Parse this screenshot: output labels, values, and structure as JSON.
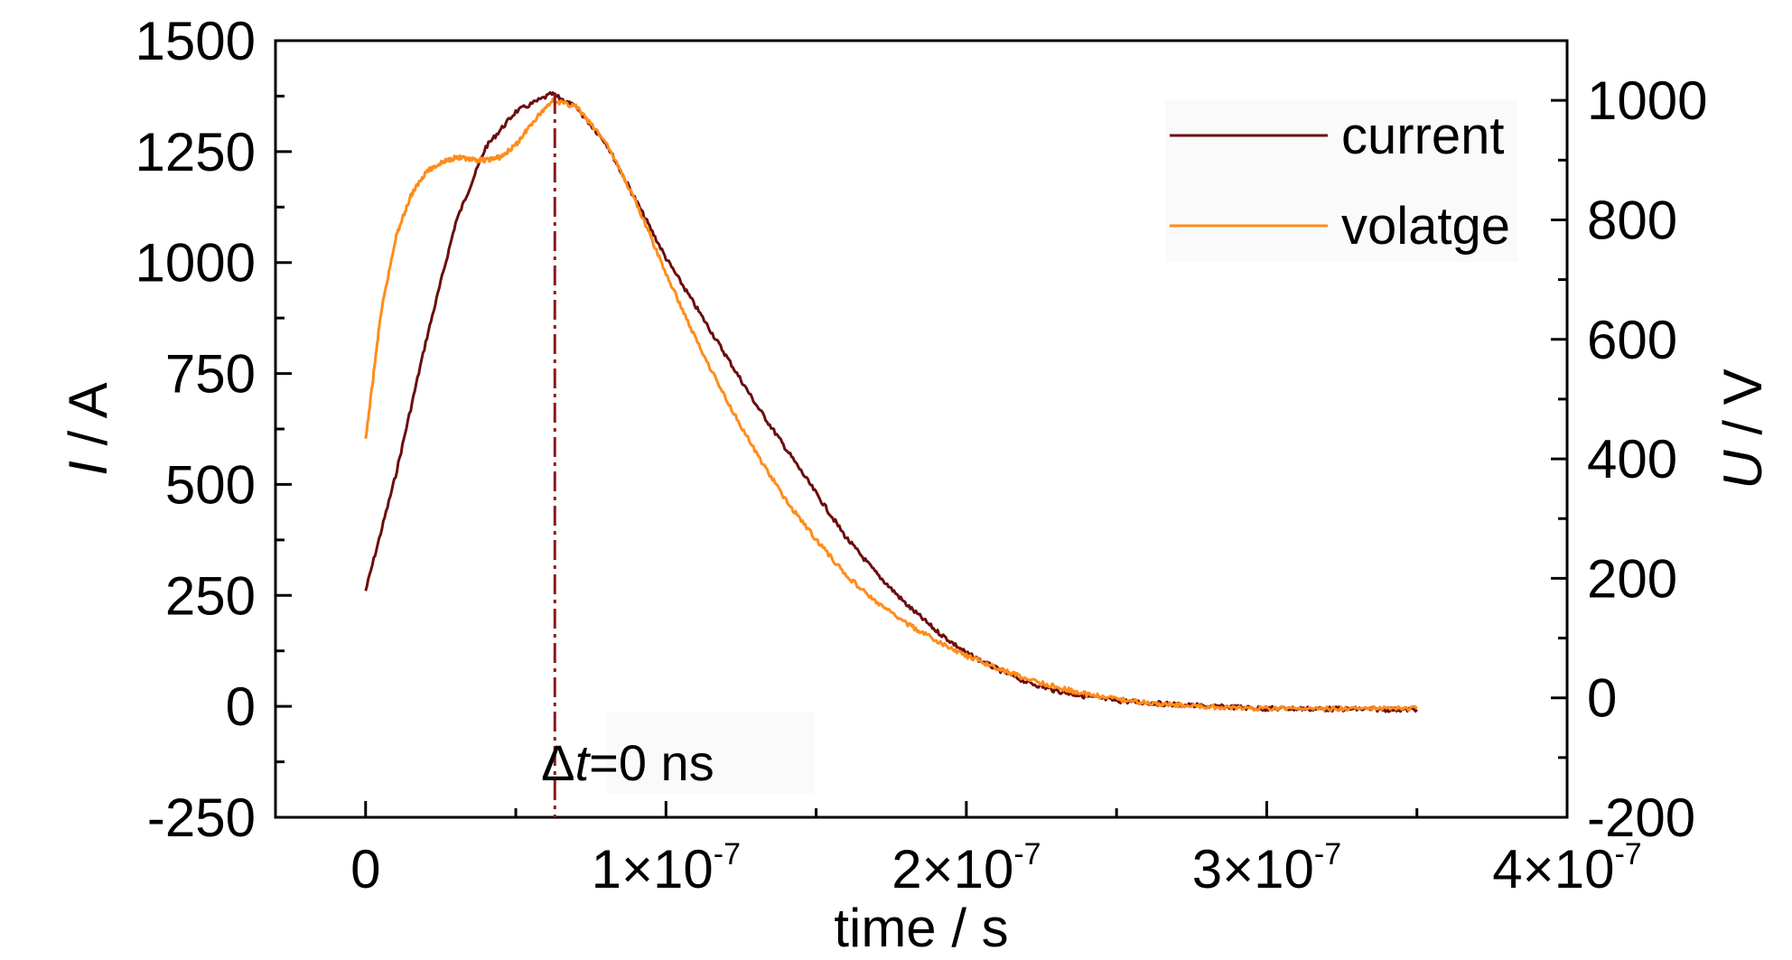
{
  "chart_data": {
    "type": "line",
    "xlabel": "time / s",
    "ylabel_left": {
      "symbol": "I",
      "unit": " / A"
    },
    "ylabel_right": {
      "symbol": "U",
      "unit": " / V"
    },
    "xlim": [
      -3e-08,
      4e-07
    ],
    "ylim_left": [
      -250,
      1500
    ],
    "ylim_right": [
      -200,
      1100
    ],
    "x_ticks": [
      {
        "value": 0,
        "mantissa": "0",
        "exponent": ""
      },
      {
        "value": 1e-07,
        "mantissa": "1×10",
        "exponent": "-7"
      },
      {
        "value": 2e-07,
        "mantissa": "2×10",
        "exponent": "-7"
      },
      {
        "value": 3e-07,
        "mantissa": "3×10",
        "exponent": "-7"
      },
      {
        "value": 4e-07,
        "mantissa": "4×10",
        "exponent": "-7"
      }
    ],
    "y_left_ticks": [
      "-250",
      "0",
      "250",
      "500",
      "750",
      "1000",
      "1250",
      "1500"
    ],
    "y_right_ticks": [
      "-200",
      "0",
      "200",
      "400",
      "600",
      "800",
      "1000"
    ],
    "grid": false,
    "legend_position": "top-right",
    "series": [
      {
        "name": "current",
        "axis": "left",
        "color": "#6b0d0d",
        "points": [
          [
            0,
            260
          ],
          [
            1e-08,
            520
          ],
          [
            2e-08,
            820
          ],
          [
            3e-08,
            1090
          ],
          [
            4e-08,
            1260
          ],
          [
            5e-08,
            1340
          ],
          [
            6.2e-08,
            1380
          ],
          [
            7e-08,
            1350
          ],
          [
            8e-08,
            1270
          ],
          [
            9e-08,
            1140
          ],
          [
            1e-07,
            1010
          ],
          [
            1.1e-07,
            900
          ],
          [
            1.2e-07,
            790
          ],
          [
            1.3e-07,
            680
          ],
          [
            1.4e-07,
            580
          ],
          [
            1.5e-07,
            480
          ],
          [
            1.6e-07,
            380
          ],
          [
            1.7e-07,
            300
          ],
          [
            1.8e-07,
            230
          ],
          [
            1.9e-07,
            170
          ],
          [
            2e-07,
            120
          ],
          [
            2.1e-07,
            85
          ],
          [
            2.2e-07,
            55
          ],
          [
            2.3e-07,
            35
          ],
          [
            2.4e-07,
            22
          ],
          [
            2.5e-07,
            13
          ],
          [
            2.6e-07,
            8
          ],
          [
            2.7e-07,
            4
          ],
          [
            2.8e-07,
            0
          ],
          [
            2.9e-07,
            -2
          ],
          [
            3e-07,
            -5
          ],
          [
            3.1e-07,
            -5
          ],
          [
            3.2e-07,
            -6
          ],
          [
            3.3e-07,
            -6
          ],
          [
            3.4e-07,
            -7
          ],
          [
            3.5e-07,
            -7
          ]
        ]
      },
      {
        "name": "volatge",
        "axis": "right",
        "color": "#ff8c1a",
        "points": [
          [
            0,
            430
          ],
          [
            5e-09,
            640
          ],
          [
            1e-08,
            770
          ],
          [
            1.5e-08,
            840
          ],
          [
            2e-08,
            880
          ],
          [
            2.5e-08,
            895
          ],
          [
            3e-08,
            905
          ],
          [
            3.5e-08,
            900
          ],
          [
            4e-08,
            900
          ],
          [
            4.5e-08,
            905
          ],
          [
            5e-08,
            925
          ],
          [
            5.5e-08,
            960
          ],
          [
            6.2e-08,
            1000
          ],
          [
            7e-08,
            990
          ],
          [
            8e-08,
            930
          ],
          [
            9e-08,
            830
          ],
          [
            1e-07,
            710
          ],
          [
            1.1e-07,
            600
          ],
          [
            1.2e-07,
            500
          ],
          [
            1.3e-07,
            410
          ],
          [
            1.4e-07,
            330
          ],
          [
            1.5e-07,
            265
          ],
          [
            1.6e-07,
            205
          ],
          [
            1.7e-07,
            160
          ],
          [
            1.8e-07,
            125
          ],
          [
            1.9e-07,
            95
          ],
          [
            2e-07,
            70
          ],
          [
            2.1e-07,
            50
          ],
          [
            2.2e-07,
            32
          ],
          [
            2.3e-07,
            18
          ],
          [
            2.4e-07,
            6
          ],
          [
            2.5e-07,
            -2
          ],
          [
            2.6e-07,
            -8
          ],
          [
            2.7e-07,
            -12
          ],
          [
            2.8e-07,
            -15
          ],
          [
            2.9e-07,
            -17
          ],
          [
            3e-07,
            -18
          ],
          [
            3.2e-07,
            -18
          ],
          [
            3.35e-07,
            -18
          ],
          [
            3.5e-07,
            -18
          ]
        ]
      }
    ],
    "marker_line": {
      "x": 6.3e-08,
      "color": "#8b1a1a"
    },
    "annotation": {
      "delta": "Δ",
      "var": "t",
      "rest": "=0 ns",
      "x": 7.5e-08,
      "y": -130
    }
  }
}
